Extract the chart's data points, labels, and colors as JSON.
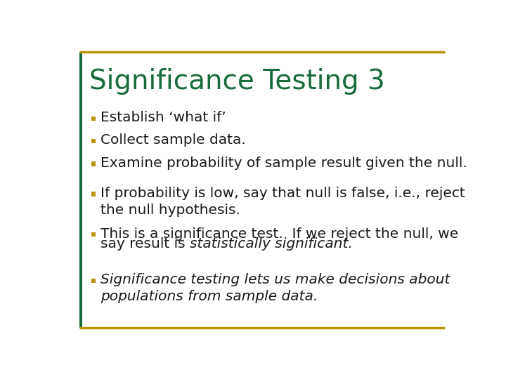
{
  "title": "Significance Testing 3",
  "title_color": "#1a6b3c",
  "title_fontsize": 28,
  "background_color": "#ffffff",
  "border_color": "#b8960c",
  "bullet_color": "#b8960c",
  "text_color": "#1a1a1a",
  "fontsize": 14.5,
  "left_bar_color": "#1a6b3c",
  "bullet_items": [
    {
      "text": "Establish ‘what if’",
      "style": "normal"
    },
    {
      "text": "Collect sample data.",
      "style": "normal"
    },
    {
      "text": "Examine probability of sample result given the null.",
      "style": "normal"
    },
    {
      "text": "If probability is low, say that null is false, i.e., reject\nthe null hypothesis.",
      "style": "normal"
    },
    {
      "text_parts": [
        {
          "text": "This is a significance test.  If we reject the null, we\nsay result is ",
          "style": "normal"
        },
        {
          "text": "statistically significant.",
          "style": "italic"
        }
      ]
    },
    {
      "text": "Significance testing lets us make decisions about\npopulations from sample data.",
      "style": "italic"
    }
  ]
}
